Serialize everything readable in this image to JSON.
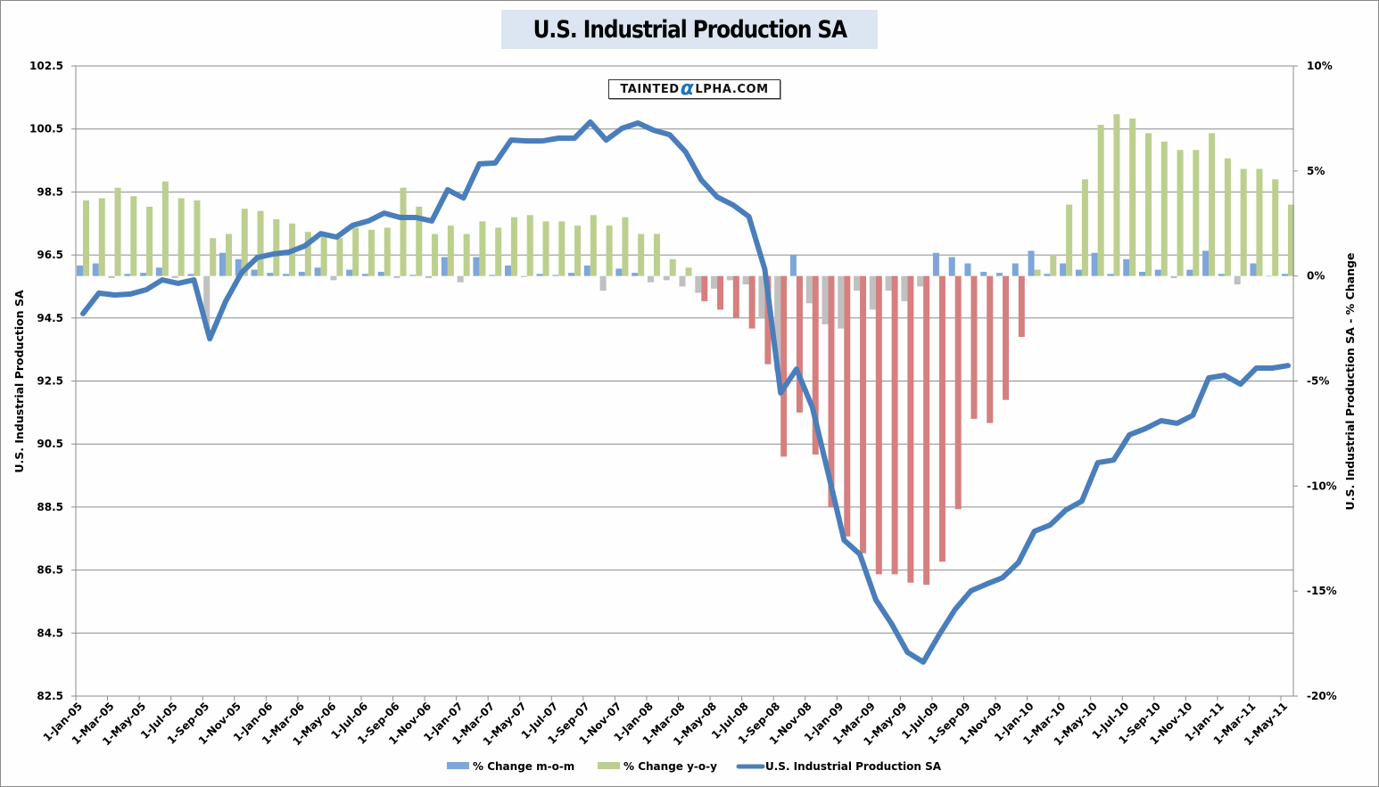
{
  "chart_data": {
    "type": "bar",
    "title": "U.S. Industrial Production SA",
    "watermark": {
      "prefix": "TAINTED",
      "alpha": "α",
      "suffix": "LPHA.COM"
    },
    "y_left": {
      "label": "U.S. Industrial Production SA",
      "range": [
        82.5,
        102.5
      ],
      "ticks": [
        "102.5",
        "100.5",
        "98.5",
        "96.5",
        "94.5",
        "92.5",
        "90.5",
        "88.5",
        "86.5",
        "84.5",
        "82.5"
      ]
    },
    "y_right": {
      "label": "U.S. Industrial Production SA - % Change",
      "range": [
        -20,
        10
      ],
      "ticks": [
        "10%",
        "5%",
        "0%",
        "-5%",
        "-10%",
        "-15%",
        "-20%"
      ]
    },
    "grid": true,
    "legend_position": "bottom",
    "x_tick_labels": [
      "1-Jan-05",
      "1-Mar-05",
      "1-May-05",
      "1-Jul-05",
      "1-Sep-05",
      "1-Nov-05",
      "1-Jan-06",
      "1-Mar-06",
      "1-May-06",
      "1-Jul-06",
      "1-Sep-06",
      "1-Nov-06",
      "1-Jan-07",
      "1-Mar-07",
      "1-May-07",
      "1-Jul-07",
      "1-Sep-07",
      "1-Nov-07",
      "1-Jan-08",
      "1-Mar-08",
      "1-May-08",
      "1-Jul-08",
      "1-Sep-08",
      "1-Nov-08",
      "1-Jan-09",
      "1-Mar-09",
      "1-May-09",
      "1-Jul-09",
      "1-Sep-09",
      "1-Nov-09",
      "1-Jan-10",
      "1-Mar-10",
      "1-May-10",
      "1-Jul-10",
      "1-Sep-10",
      "1-Nov-10",
      "1-Jan-11",
      "1-Mar-11",
      "1-May-11"
    ],
    "x": [
      "Jan-05",
      "Feb-05",
      "Mar-05",
      "Apr-05",
      "May-05",
      "Jun-05",
      "Jul-05",
      "Aug-05",
      "Sep-05",
      "Oct-05",
      "Nov-05",
      "Dec-05",
      "Jan-06",
      "Feb-06",
      "Mar-06",
      "Apr-06",
      "May-06",
      "Jun-06",
      "Jul-06",
      "Aug-06",
      "Sep-06",
      "Oct-06",
      "Nov-06",
      "Dec-06",
      "Jan-07",
      "Feb-07",
      "Mar-07",
      "Apr-07",
      "May-07",
      "Jun-07",
      "Jul-07",
      "Aug-07",
      "Sep-07",
      "Oct-07",
      "Nov-07",
      "Dec-07",
      "Jan-08",
      "Feb-08",
      "Mar-08",
      "Apr-08",
      "May-08",
      "Jun-08",
      "Jul-08",
      "Aug-08",
      "Sep-08",
      "Oct-08",
      "Nov-08",
      "Dec-08",
      "Jan-09",
      "Feb-09",
      "Mar-09",
      "Apr-09",
      "May-09",
      "Jun-09",
      "Jul-09",
      "Aug-09",
      "Sep-09",
      "Oct-09",
      "Nov-09",
      "Dec-09",
      "Jan-10",
      "Feb-10",
      "Mar-10",
      "Apr-10",
      "May-10",
      "Jun-10",
      "Jul-10",
      "Aug-10",
      "Sep-10",
      "Oct-10",
      "Nov-10",
      "Dec-10",
      "Jan-11",
      "Feb-11",
      "Mar-11",
      "Apr-11",
      "May-11"
    ],
    "series": [
      {
        "name": "% Change m-o-m",
        "axis": "right",
        "kind": "bar",
        "color": "#7ea6d8",
        "negative_color": "#c0c0c0",
        "values": [
          0.5,
          0.6,
          -0.1,
          0.1,
          0.15,
          0.4,
          -0.1,
          0.1,
          -2.5,
          1.1,
          0.8,
          0.3,
          0.15,
          0.1,
          0.2,
          0.4,
          -0.2,
          0.3,
          0.1,
          0.2,
          -0.1,
          0.05,
          -0.1,
          0.9,
          -0.3,
          0.9,
          0.05,
          0.5,
          -0.05,
          0.1,
          0.05,
          0.15,
          0.5,
          -0.7,
          0.35,
          0.15,
          -0.3,
          -0.2,
          -0.5,
          -0.8,
          -0.6,
          -0.2,
          -0.4,
          -2.0,
          -4.5,
          1.0,
          -1.3,
          -2.3,
          -2.5,
          -0.7,
          -1.6,
          -0.7,
          -1.2,
          -0.5,
          1.1,
          0.9,
          0.6,
          0.2,
          0.15,
          0.6,
          1.2,
          0.1,
          0.6,
          0.3,
          1.1,
          0.1,
          0.8,
          0.2,
          0.3,
          -0.1,
          0.3,
          1.2,
          0.1,
          -0.4,
          0.6,
          0.0,
          0.1
        ]
      },
      {
        "name": "% Change y-o-y",
        "axis": "right",
        "kind": "bar",
        "color": "#bccf8e",
        "negative_color": "#d67f7f",
        "values": [
          3.6,
          3.7,
          4.2,
          3.8,
          3.3,
          4.5,
          3.7,
          3.6,
          1.8,
          2.0,
          3.2,
          3.1,
          2.7,
          2.5,
          2.1,
          2.0,
          1.8,
          2.3,
          2.2,
          2.3,
          4.2,
          3.3,
          2.0,
          2.4,
          2.0,
          2.6,
          2.3,
          2.8,
          2.9,
          2.6,
          2.6,
          2.4,
          2.9,
          2.4,
          2.8,
          2.0,
          2.0,
          0.8,
          0.4,
          -1.2,
          -1.6,
          -2.0,
          -2.5,
          -4.2,
          -8.6,
          -6.5,
          -8.5,
          -11.0,
          -12.4,
          -13.2,
          -14.2,
          -14.2,
          -14.6,
          -14.7,
          -13.6,
          -11.1,
          -6.8,
          -7.0,
          -5.9,
          -2.9,
          0.3,
          1.0,
          3.4,
          4.6,
          7.2,
          7.7,
          7.5,
          6.8,
          6.4,
          6.0,
          6.0,
          6.8,
          5.6,
          5.1,
          5.1,
          4.6,
          3.4
        ]
      },
      {
        "name": "U.S. Industrial Production SA",
        "axis": "left",
        "kind": "line",
        "color": "#4a7ebb",
        "values": [
          94.64,
          95.29,
          95.23,
          95.26,
          95.4,
          95.71,
          95.6,
          95.71,
          93.84,
          95.03,
          95.94,
          96.42,
          96.53,
          96.59,
          96.79,
          97.18,
          97.07,
          97.44,
          97.58,
          97.83,
          97.69,
          97.69,
          97.58,
          98.57,
          98.31,
          99.39,
          99.42,
          100.15,
          100.12,
          100.12,
          100.21,
          100.21,
          100.72,
          100.15,
          100.52,
          100.69,
          100.46,
          100.32,
          99.78,
          98.88,
          98.34,
          98.09,
          97.72,
          96.05,
          92.12,
          92.88,
          91.67,
          89.57,
          87.45,
          87.0,
          85.56,
          84.79,
          83.89,
          83.58,
          84.45,
          85.25,
          85.84,
          86.06,
          86.26,
          86.74,
          87.73,
          87.93,
          88.41,
          88.69,
          89.91,
          89.99,
          90.79,
          90.99,
          91.24,
          91.16,
          91.41,
          92.6,
          92.68,
          92.4,
          92.91,
          92.91,
          92.99
        ]
      }
    ]
  }
}
